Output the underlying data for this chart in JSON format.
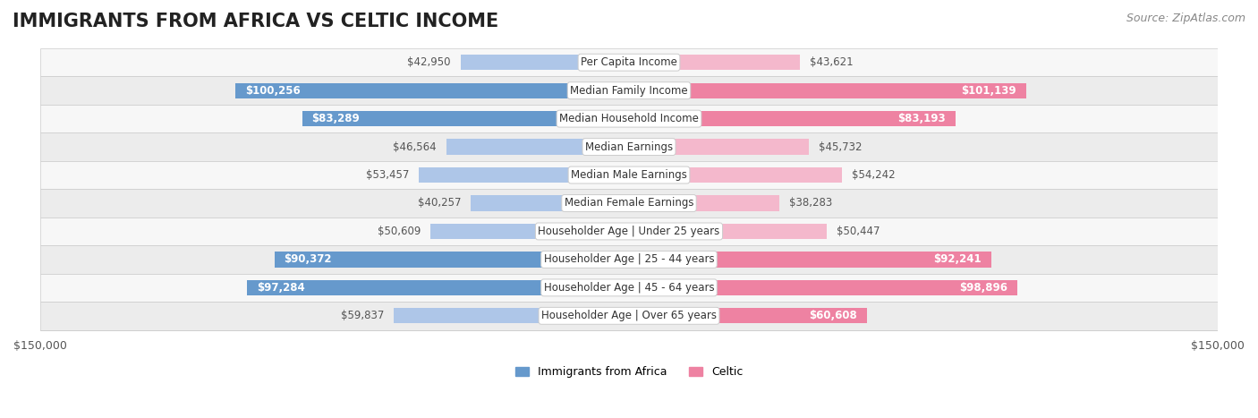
{
  "title": "IMMIGRANTS FROM AFRICA VS CELTIC INCOME",
  "source": "Source: ZipAtlas.com",
  "categories": [
    "Per Capita Income",
    "Median Family Income",
    "Median Household Income",
    "Median Earnings",
    "Median Male Earnings",
    "Median Female Earnings",
    "Householder Age | Under 25 years",
    "Householder Age | 25 - 44 years",
    "Householder Age | 45 - 64 years",
    "Householder Age | Over 65 years"
  ],
  "africa_values": [
    42950,
    100256,
    83289,
    46564,
    53457,
    40257,
    50609,
    90372,
    97284,
    59837
  ],
  "celtic_values": [
    43621,
    101139,
    83193,
    45732,
    54242,
    38283,
    50447,
    92241,
    98896,
    60608
  ],
  "africa_labels": [
    "$42,950",
    "$100,256",
    "$83,289",
    "$46,564",
    "$53,457",
    "$40,257",
    "$50,609",
    "$90,372",
    "$97,284",
    "$59,837"
  ],
  "celtic_labels": [
    "$43,621",
    "$101,139",
    "$83,193",
    "$45,732",
    "$54,242",
    "$38,283",
    "$50,447",
    "$92,241",
    "$98,896",
    "$60,608"
  ],
  "africa_color_light": "#aec6e8",
  "africa_color_dark": "#6699cc",
  "celtic_color_light": "#f4b8cc",
  "celtic_color_dark": "#ee82a2",
  "axis_limit": 150000,
  "axis_label": "$150,000",
  "background_color": "#ffffff",
  "row_bg_color": "#f0f0f0",
  "label_color_dark_threshold": 60000,
  "bar_height": 0.55,
  "title_fontsize": 15,
  "source_fontsize": 9,
  "label_fontsize": 8.5,
  "category_fontsize": 8.5
}
